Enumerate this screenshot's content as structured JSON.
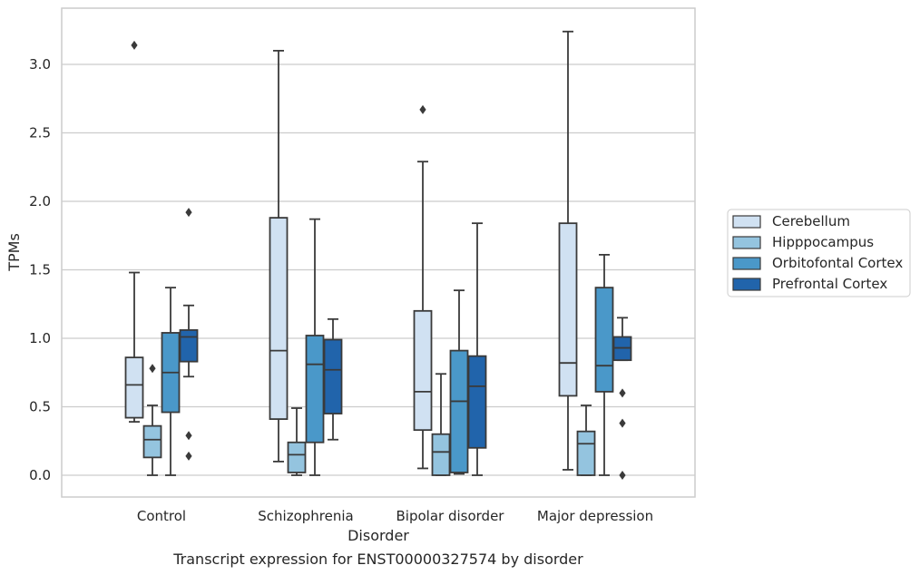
{
  "chart_data": {
    "type": "boxplot",
    "title": "Transcript expression for ENST00000327574 by disorder",
    "xlabel": "Disorder",
    "ylabel": "TPMs",
    "ylim": [
      -0.15,
      3.42
    ],
    "yticks": [
      "0.0",
      "0.5",
      "1.0",
      "1.5",
      "2.0",
      "2.5",
      "3.0"
    ],
    "grid": "horizontal",
    "legend_position": "right",
    "categories": [
      "Control",
      "Schizophrenia",
      "Bipolar disorder",
      "Major depression"
    ],
    "series": [
      {
        "name": "Cerebellum",
        "color": "#d0e1f2",
        "boxes": [
          {
            "whislo": 0.39,
            "q1": 0.42,
            "med": 0.66,
            "q3": 0.86,
            "whishi": 1.48,
            "fliers": [
              3.14
            ]
          },
          {
            "whislo": 0.1,
            "q1": 0.41,
            "med": 0.91,
            "q3": 1.88,
            "whishi": 3.1,
            "fliers": []
          },
          {
            "whislo": 0.05,
            "q1": 0.33,
            "med": 0.61,
            "q3": 1.2,
            "whishi": 2.29,
            "fliers": [
              2.67
            ]
          },
          {
            "whislo": 0.04,
            "q1": 0.58,
            "med": 0.82,
            "q3": 1.84,
            "whishi": 3.24,
            "fliers": []
          }
        ]
      },
      {
        "name": "Hipppocampus",
        "color": "#94c4df",
        "boxes": [
          {
            "whislo": 0.0,
            "q1": 0.13,
            "med": 0.26,
            "q3": 0.36,
            "whishi": 0.51,
            "fliers": [
              0.78
            ]
          },
          {
            "whislo": 0.0,
            "q1": 0.02,
            "med": 0.15,
            "q3": 0.24,
            "whishi": 0.49,
            "fliers": []
          },
          {
            "whislo": 0.0,
            "q1": 0.0,
            "med": 0.17,
            "q3": 0.3,
            "whishi": 0.74,
            "fliers": []
          },
          {
            "whislo": 0.0,
            "q1": 0.0,
            "med": 0.23,
            "q3": 0.32,
            "whishi": 0.51,
            "fliers": []
          }
        ]
      },
      {
        "name": "Orbitofontal Cortex",
        "color": "#4a98c9",
        "boxes": [
          {
            "whislo": 0.0,
            "q1": 0.46,
            "med": 0.75,
            "q3": 1.04,
            "whishi": 1.37,
            "fliers": []
          },
          {
            "whislo": 0.0,
            "q1": 0.24,
            "med": 0.81,
            "q3": 1.02,
            "whishi": 1.87,
            "fliers": []
          },
          {
            "whislo": 0.01,
            "q1": 0.02,
            "med": 0.54,
            "q3": 0.91,
            "whishi": 1.35,
            "fliers": []
          },
          {
            "whislo": 0.0,
            "q1": 0.61,
            "med": 0.8,
            "q3": 1.37,
            "whishi": 1.61,
            "fliers": []
          }
        ]
      },
      {
        "name": "Prefrontal Cortex",
        "color": "#2164ab",
        "boxes": [
          {
            "whislo": 0.72,
            "q1": 0.83,
            "med": 1.01,
            "q3": 1.06,
            "whishi": 1.24,
            "fliers": [
              1.92,
              0.29,
              0.14
            ]
          },
          {
            "whislo": 0.26,
            "q1": 0.45,
            "med": 0.77,
            "q3": 0.99,
            "whishi": 1.14,
            "fliers": []
          },
          {
            "whislo": 0.0,
            "q1": 0.2,
            "med": 0.65,
            "q3": 0.87,
            "whishi": 1.84,
            "fliers": []
          },
          {
            "whislo": 0.84,
            "q1": 0.84,
            "med": 0.93,
            "q3": 1.01,
            "whishi": 1.15,
            "fliers": [
              0.6,
              0.38,
              0.0
            ]
          }
        ]
      }
    ]
  }
}
